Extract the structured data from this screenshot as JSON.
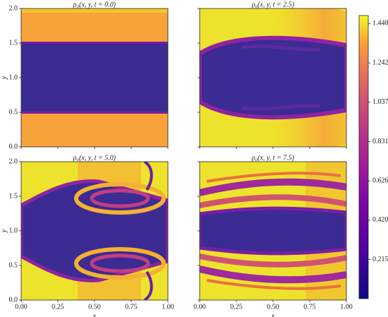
{
  "chart_data": [
    {
      "type": "heatmap",
      "title": "ρ₀(x, y, t = 0.0)",
      "ylabel": "y",
      "xlim": [
        0,
        1
      ],
      "ylim": [
        0,
        2
      ],
      "show_xticklabels": false,
      "show_yticklabels": true,
      "xticks": [
        0,
        0.25,
        0.5,
        0.75,
        1
      ],
      "yticks": [
        {
          "value": 0,
          "label": "0.0"
        },
        0.5,
        {
          "value": 1,
          "label": "1.0"
        },
        1.5,
        {
          "value": 2,
          "label": "2.0"
        }
      ]
    },
    {
      "type": "heatmap",
      "title": "ρ₀(x, y, t = 2.5)",
      "xlim": [
        0,
        1
      ],
      "ylim": [
        0,
        2
      ],
      "show_xticklabels": false,
      "show_yticklabels": false,
      "xticks": [
        0,
        0.25,
        0.5,
        0.75,
        1
      ],
      "yticks": [
        0,
        0.5,
        1,
        1.5,
        2
      ]
    },
    {
      "type": "heatmap",
      "title": "ρ₀(x, y, t = 5.0)",
      "xlabel": "x",
      "ylabel": "y",
      "xlim": [
        0,
        1
      ],
      "ylim": [
        0,
        2
      ],
      "show_xticklabels": true,
      "show_yticklabels": true,
      "xticks": [
        {
          "value": 0,
          "label": "0.00"
        },
        0.25,
        {
          "value": 0.5,
          "label": "0.50"
        },
        0.75,
        {
          "value": 1,
          "label": "1.00"
        }
      ],
      "yticks": [
        {
          "value": 0,
          "label": "0.0"
        },
        0.5,
        {
          "value": 1,
          "label": "1.0"
        },
        1.5,
        {
          "value": 2,
          "label": "2.0"
        }
      ]
    },
    {
      "type": "heatmap",
      "title": "ρ₀(x, y, t = 7.5)",
      "xlabel": "x",
      "xlim": [
        0,
        1
      ],
      "ylim": [
        0,
        2
      ],
      "show_xticklabels": true,
      "show_yticklabels": false,
      "xticks": [
        {
          "value": 0,
          "label": "0.00"
        },
        0.25,
        {
          "value": 0.5,
          "label": "0.50"
        },
        0.75,
        {
          "value": 1,
          "label": "1.00"
        }
      ],
      "yticks": [
        0,
        0.5,
        1,
        1.5,
        2
      ]
    }
  ],
  "colorbar": {
    "zlim": [
      0.01,
      1.49
    ],
    "ticks": [
      0.215,
      {
        "value": 0.42,
        "label": "0.420"
      },
      0.626,
      0.831,
      1.037,
      1.242,
      1.448
    ]
  }
}
